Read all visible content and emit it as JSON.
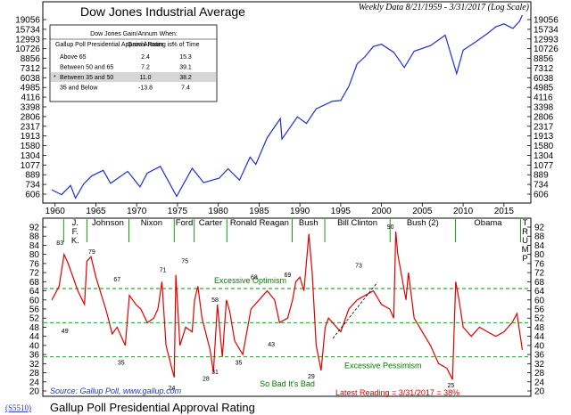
{
  "chart_data": [
    {
      "type": "line",
      "title": "Dow Jones Industrial Average",
      "subtitle": "Weekly Data 8/21/1959 - 3/31/2017 (Log Scale)",
      "scale": "log",
      "color": "#1f2fd0",
      "y_ticks": [
        "606",
        "734",
        "889",
        "1077",
        "1304",
        "1580",
        "1913",
        "2317",
        "2806",
        "3398",
        "4116",
        "4985",
        "6038",
        "7312",
        "8856",
        "10726",
        "12993",
        "15734",
        "19056"
      ],
      "x_ticks": [
        "1960",
        "1965",
        "1970",
        "1975",
        "1980",
        "1985",
        "1990",
        "1995",
        "2000",
        "2005",
        "2010",
        "2015"
      ],
      "series": [
        {
          "x": [
            1959.6,
            1960.8,
            1961.9,
            1962.5,
            1963.5,
            1964.5,
            1965.9,
            1966.8,
            1968.9,
            1970.4,
            1971.3,
            1972.9,
            1974.9,
            1976.8,
            1978.2,
            1980.1,
            1981.2,
            1982.6,
            1983.9,
            1984.6,
            1986.0,
            1987.6,
            1987.8,
            1989.7,
            1990.8,
            1992.0,
            1994.0,
            1995.0,
            1996.0,
            1997.0,
            1998.0,
            1999.0,
            2000.0,
            2001.5,
            2002.8,
            2004.0,
            2006.0,
            2007.8,
            2009.2,
            2010.0,
            2011.5,
            2013.0,
            2014.0,
            2015.0,
            2016.1,
            2016.9,
            2017.25
          ],
          "y": [
            660,
            600,
            720,
            560,
            740,
            870,
            970,
            750,
            950,
            700,
            920,
            1050,
            580,
            1010,
            760,
            830,
            1000,
            800,
            1260,
            1090,
            1850,
            2700,
            1800,
            2790,
            2450,
            3270,
            3800,
            3850,
            5100,
            7900,
            9200,
            11200,
            11700,
            10000,
            7400,
            10200,
            11400,
            14000,
            6550,
            10400,
            12200,
            14500,
            16500,
            17500,
            16000,
            18400,
            20800
          ]
        }
      ],
      "table": {
        "caption": "Dow Jones Gain/Annum When:",
        "headers": [
          "Gallup Poll Presidential Approval Rating is:",
          "Gain/ Annum",
          "% of Time"
        ],
        "rows": [
          {
            "label": "Above 65",
            "gain": "2.4",
            "pct": "15.3",
            "highlight": false
          },
          {
            "label": "Between 50 and 65",
            "gain": "7.2",
            "pct": "39.1",
            "highlight": false
          },
          {
            "label": "Between 35 and 50",
            "gain": "11.0",
            "pct": "38.2",
            "highlight": true
          },
          {
            "label": "35 and Below",
            "gain": "-13.8",
            "pct": "7.4",
            "highlight": false
          }
        ]
      }
    },
    {
      "type": "line",
      "title": "Gallup Poll Presidential Approval Rating",
      "color": "#e00000",
      "ylim": [
        20,
        92
      ],
      "y_ticks": [
        "20",
        "24",
        "28",
        "32",
        "36",
        "40",
        "44",
        "48",
        "52",
        "56",
        "60",
        "64",
        "68",
        "72",
        "76",
        "80",
        "84",
        "88",
        "92"
      ],
      "series": [
        {
          "x": [
            1959.6,
            1960.5,
            1961.1,
            1961.6,
            1962.8,
            1963.6,
            1963.9,
            1964.4,
            1965.0,
            1966.3,
            1967.0,
            1967.6,
            1968.6,
            1969.1,
            1969.9,
            1970.5,
            1971.3,
            1972.1,
            1972.6,
            1973.1,
            1973.6,
            1974.3,
            1974.6,
            1974.8,
            1975.3,
            1976.0,
            1976.8,
            1977.1,
            1977.5,
            1978.0,
            1979.0,
            1979.4,
            1979.9,
            1980.5,
            1981.0,
            1981.4,
            1982.0,
            1983.0,
            1984.0,
            1985.0,
            1986.0,
            1986.9,
            1987.5,
            1988.5,
            1989.1,
            1989.5,
            1990.0,
            1990.5,
            1991.1,
            1991.5,
            1992.0,
            1992.6,
            1993.1,
            1993.5,
            1994.0,
            1995.0,
            1996.0,
            1997.0,
            1998.0,
            1999.0,
            2000.0,
            2001.0,
            2001.5,
            2001.75,
            2002.0,
            2003.0,
            2003.3,
            2004.0,
            2005.0,
            2006.0,
            2007.0,
            2008.0,
            2008.7,
            2009.1,
            2009.5,
            2010.0,
            2011.0,
            2012.0,
            2013.0,
            2014.0,
            2015.0,
            2016.0,
            2016.6,
            2017.1,
            2017.25
          ],
          "y": [
            60,
            66,
            80,
            76,
            64,
            58,
            77,
            79,
            70,
            55,
            45,
            48,
            40,
            62,
            58,
            56,
            50,
            52,
            56,
            68,
            40,
            30,
            26,
            71,
            40,
            48,
            46,
            60,
            66,
            52,
            38,
            28,
            58,
            35,
            60,
            55,
            42,
            36,
            56,
            60,
            64,
            60,
            50,
            52,
            60,
            68,
            70,
            64,
            89,
            72,
            40,
            29,
            48,
            52,
            50,
            46,
            56,
            60,
            62,
            64,
            58,
            56,
            52,
            90,
            80,
            60,
            72,
            52,
            46,
            40,
            32,
            30,
            25,
            68,
            60,
            48,
            44,
            48,
            46,
            44,
            46,
            50,
            54,
            42,
            38
          ]
        }
      ],
      "presidents": [
        {
          "name": "J. F. K.",
          "start": 1961.05
        },
        {
          "name": "Johnson",
          "start": 1963.9
        },
        {
          "name": "Nixon",
          "start": 1969.05
        },
        {
          "name": "Ford",
          "start": 1974.6
        },
        {
          "name": "Carter",
          "start": 1977.05
        },
        {
          "name": "Ronald Reagan",
          "start": 1981.05
        },
        {
          "name": "Bush",
          "start": 1989.05
        },
        {
          "name": "Bill Clinton",
          "start": 1993.05
        },
        {
          "name": "Bush (2)",
          "start": 2001.05
        },
        {
          "name": "Obama",
          "start": 2009.05
        },
        {
          "name": "T R U M P",
          "start": 2017.05
        }
      ],
      "thresholds": [
        {
          "value": 65,
          "label": "Excessive Optimism"
        },
        {
          "value": 50,
          "label": ""
        },
        {
          "value": 35,
          "label": "Excessive Pessimism"
        }
      ],
      "zone_label": "So Bad It's Bad",
      "peak_labels": [
        {
          "x": 1960.6,
          "y": 83,
          "text": "83"
        },
        {
          "x": 1964.5,
          "y": 79,
          "text": "79"
        },
        {
          "x": 1967.6,
          "y": 67,
          "text": "67"
        },
        {
          "x": 1973.2,
          "y": 71,
          "text": "71"
        },
        {
          "x": 1975.9,
          "y": 75,
          "text": "75"
        },
        {
          "x": 1979.6,
          "y": 58,
          "text": "58"
        },
        {
          "x": 1984.4,
          "y": 68,
          "text": "68"
        },
        {
          "x": 1988.5,
          "y": 69,
          "text": "69"
        },
        {
          "x": 1997.2,
          "y": 73,
          "text": "73"
        },
        {
          "x": 2001.1,
          "y": 90,
          "text": "90"
        },
        {
          "x": 1961.2,
          "y": 49,
          "text": "49"
        },
        {
          "x": 1968.1,
          "y": 35,
          "text": "35"
        },
        {
          "x": 1974.3,
          "y": 24,
          "text": "24"
        },
        {
          "x": 1978.5,
          "y": 28,
          "text": "28"
        },
        {
          "x": 1979.6,
          "y": 31,
          "text": "31"
        },
        {
          "x": 1982.5,
          "y": 35,
          "text": "35"
        },
        {
          "x": 1986.5,
          "y": 43,
          "text": "43"
        },
        {
          "x": 1991.4,
          "y": 29,
          "text": "29"
        },
        {
          "x": 2008.5,
          "y": 25,
          "text": "25"
        }
      ],
      "source": "Source: Gallup Poll, www.gallup.com",
      "latest": "Latest Reading = 3/31/2017 = 38%"
    }
  ],
  "chart_code": "(S5510)",
  "bottom_title": "Gallup Poll Presidential Approval Rating"
}
